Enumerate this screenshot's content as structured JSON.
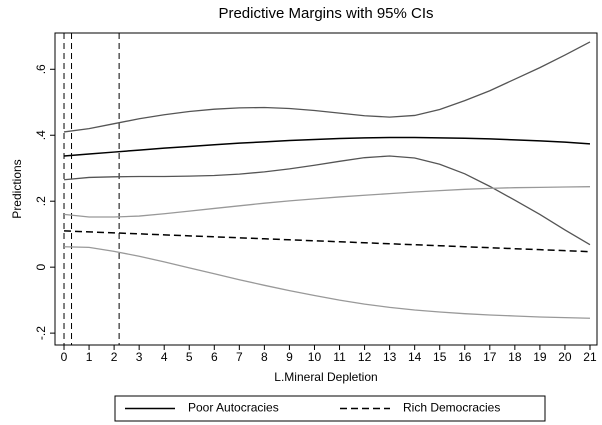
{
  "chart_data": {
    "type": "line",
    "title": "Predictive Margins with 95% CIs",
    "xlabel": "L.Mineral Depletion",
    "ylabel": "Predictions",
    "x": [
      0,
      1,
      2,
      3,
      4,
      5,
      6,
      7,
      8,
      9,
      10,
      11,
      12,
      13,
      14,
      15,
      16,
      17,
      18,
      19,
      20,
      21
    ],
    "series": [
      {
        "color": "#555555",
        "dash": false,
        "values": [
          0.41,
          0.42,
          0.435,
          0.45,
          0.462,
          0.472,
          0.479,
          0.483,
          0.484,
          0.481,
          0.475,
          0.467,
          0.459,
          0.455,
          0.46,
          0.478,
          0.505,
          0.535,
          0.57,
          0.605,
          0.643,
          0.683
        ]
      },
      {
        "color": "#555555",
        "dash": false,
        "values": [
          0.265,
          0.272,
          0.274,
          0.275,
          0.275,
          0.276,
          0.278,
          0.282,
          0.289,
          0.298,
          0.309,
          0.321,
          0.332,
          0.337,
          0.331,
          0.312,
          0.283,
          0.245,
          0.203,
          0.16,
          0.113,
          0.068
        ]
      },
      {
        "color": "#999999",
        "dash": false,
        "values": [
          0.16,
          0.152,
          0.152,
          0.155,
          0.162,
          0.17,
          0.178,
          0.186,
          0.194,
          0.201,
          0.207,
          0.213,
          0.218,
          0.223,
          0.228,
          0.232,
          0.236,
          0.239,
          0.241,
          0.242,
          0.243,
          0.244
        ]
      },
      {
        "color": "#999999",
        "dash": false,
        "values": [
          0.062,
          0.06,
          0.048,
          0.033,
          0.016,
          -0.002,
          -0.02,
          -0.038,
          -0.055,
          -0.071,
          -0.086,
          -0.1,
          -0.112,
          -0.122,
          -0.13,
          -0.136,
          -0.141,
          -0.145,
          -0.148,
          -0.151,
          -0.153,
          -0.155
        ]
      },
      {
        "name": "Poor Autocracies",
        "color": "#000000",
        "dash": false,
        "values": [
          0.337,
          0.343,
          0.349,
          0.355,
          0.361,
          0.366,
          0.371,
          0.376,
          0.38,
          0.384,
          0.387,
          0.39,
          0.392,
          0.393,
          0.393,
          0.392,
          0.391,
          0.389,
          0.386,
          0.383,
          0.379,
          0.374
        ]
      },
      {
        "name": "Rich Democracies",
        "color": "#000000",
        "dash": true,
        "values": [
          0.11,
          0.107,
          0.104,
          0.101,
          0.098,
          0.095,
          0.092,
          0.089,
          0.086,
          0.083,
          0.08,
          0.077,
          0.074,
          0.071,
          0.068,
          0.065,
          0.062,
          0.059,
          0.056,
          0.053,
          0.05,
          0.047
        ]
      }
    ],
    "xlines": [
      0,
      0.3,
      2.2
    ],
    "xlim": [
      -0.36,
      21.28
    ],
    "ylim": [
      -0.236,
      0.71
    ],
    "xticks": [
      0,
      1,
      2,
      3,
      4,
      5,
      6,
      7,
      8,
      9,
      10,
      11,
      12,
      13,
      14,
      15,
      16,
      17,
      18,
      19,
      20,
      21
    ],
    "yticks": [
      {
        "value": -0.2,
        "label": "-.2"
      },
      {
        "value": 0,
        "label": "0"
      },
      {
        "value": 0.2,
        "label": ".2"
      },
      {
        "value": 0.4,
        "label": ".4"
      },
      {
        "value": 0.6,
        "label": ".6"
      }
    ],
    "legend": "bottom"
  }
}
